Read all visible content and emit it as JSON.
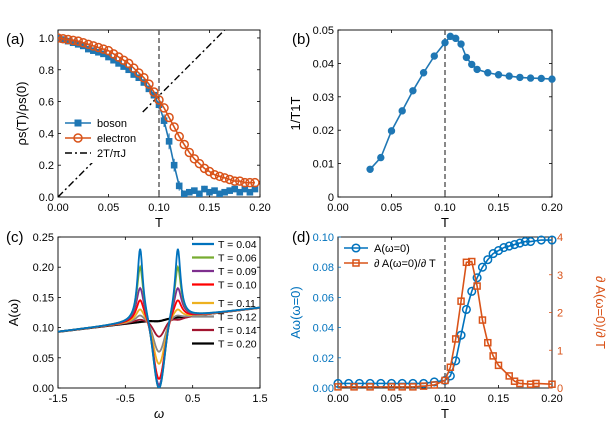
{
  "panels": {
    "a": "(a)",
    "b": "(b)",
    "c": "(c)",
    "d": "(d)"
  },
  "colors": {
    "blue": "#1f77b4",
    "orange": "#d95319",
    "black": "#000000",
    "dashed": "#555555"
  },
  "chart_data": [
    {
      "id": "a",
      "type": "line",
      "xlabel": "T",
      "ylabel": "ρs(T)/ρs(0)",
      "xlim": [
        0,
        0.2
      ],
      "ylim": [
        0,
        1.05
      ],
      "xticks": [
        "0.00",
        "0.05",
        "0.10",
        "0.15",
        "0.20"
      ],
      "yticks": [
        "0.0",
        "0.2",
        "0.4",
        "0.6",
        "0.8",
        "1.0"
      ],
      "legend_position": "lower-left",
      "vline": 0.1,
      "series": [
        {
          "name": "boson",
          "color": "#1f77b4",
          "marker": "square",
          "x": [
            0.0,
            0.005,
            0.01,
            0.015,
            0.02,
            0.025,
            0.03,
            0.035,
            0.04,
            0.045,
            0.05,
            0.055,
            0.06,
            0.065,
            0.07,
            0.075,
            0.08,
            0.085,
            0.09,
            0.095,
            0.1,
            0.105,
            0.11,
            0.115,
            0.12,
            0.125,
            0.13,
            0.135,
            0.14,
            0.145,
            0.15,
            0.155,
            0.16,
            0.165,
            0.17,
            0.175,
            0.18,
            0.185,
            0.19,
            0.195
          ],
          "y": [
            1.0,
            0.99,
            0.98,
            0.97,
            0.96,
            0.95,
            0.93,
            0.92,
            0.91,
            0.9,
            0.88,
            0.86,
            0.84,
            0.82,
            0.8,
            0.77,
            0.75,
            0.72,
            0.68,
            0.64,
            0.58,
            0.48,
            0.35,
            0.2,
            0.07,
            0.02,
            0.03,
            0.04,
            0.02,
            0.05,
            0.03,
            0.04,
            0.02,
            0.03,
            0.04,
            0.05,
            0.03,
            0.05,
            0.03,
            0.05
          ],
          "errors": [
            0.01,
            0.01,
            0.01,
            0.01,
            0.01,
            0.01,
            0.01,
            0.01,
            0.01,
            0.01,
            0.01,
            0.01,
            0.01,
            0.01,
            0.01,
            0.01,
            0.01,
            0.01,
            0.015,
            0.015,
            0.03,
            0.04,
            0.05,
            0.04,
            0.03,
            0.02,
            0.02,
            0.02,
            0.02,
            0.02,
            0.02,
            0.02,
            0.02,
            0.02,
            0.02,
            0.02,
            0.02,
            0.02,
            0.02,
            0.02
          ]
        },
        {
          "name": "electron",
          "color": "#d95319",
          "marker": "circle",
          "x": [
            0.0,
            0.005,
            0.01,
            0.015,
            0.02,
            0.025,
            0.03,
            0.035,
            0.04,
            0.045,
            0.05,
            0.055,
            0.06,
            0.065,
            0.07,
            0.075,
            0.08,
            0.085,
            0.09,
            0.095,
            0.1,
            0.105,
            0.11,
            0.115,
            0.12,
            0.125,
            0.13,
            0.135,
            0.14,
            0.145,
            0.15,
            0.155,
            0.16,
            0.165,
            0.17,
            0.175,
            0.18,
            0.185,
            0.19,
            0.195
          ],
          "y": [
            1.0,
            0.995,
            0.99,
            0.985,
            0.98,
            0.97,
            0.96,
            0.95,
            0.94,
            0.93,
            0.92,
            0.9,
            0.88,
            0.86,
            0.84,
            0.81,
            0.78,
            0.75,
            0.71,
            0.66,
            0.61,
            0.56,
            0.5,
            0.44,
            0.38,
            0.33,
            0.28,
            0.24,
            0.21,
            0.18,
            0.16,
            0.14,
            0.13,
            0.12,
            0.11,
            0.1,
            0.1,
            0.09,
            0.09,
            0.09
          ]
        },
        {
          "name": "2T/πJ",
          "color": "#000000",
          "style": "dash-dot",
          "x": [
            0.0,
            0.2
          ],
          "y": [
            0.0,
            1.2732
          ]
        }
      ]
    },
    {
      "id": "b",
      "type": "line",
      "xlabel": "T",
      "ylabel": "1/T1T",
      "xlim": [
        0,
        0.2
      ],
      "ylim": [
        0,
        0.05
      ],
      "xticks": [
        "0.00",
        "0.05",
        "0.10",
        "0.15",
        "0.20"
      ],
      "yticks": [
        "0",
        "0.01",
        "0.02",
        "0.03",
        "0.04",
        "0.05"
      ],
      "vline": 0.1,
      "series": [
        {
          "color": "#1f77b4",
          "marker": "circle",
          "x": [
            0.03,
            0.04,
            0.05,
            0.06,
            0.07,
            0.08,
            0.09,
            0.1,
            0.105,
            0.11,
            0.115,
            0.12,
            0.125,
            0.13,
            0.14,
            0.15,
            0.16,
            0.17,
            0.18,
            0.19,
            0.2
          ],
          "y": [
            0.0083,
            0.0118,
            0.0198,
            0.0258,
            0.0318,
            0.0372,
            0.0422,
            0.0462,
            0.0481,
            0.0475,
            0.0458,
            0.0418,
            0.0397,
            0.0382,
            0.0372,
            0.0366,
            0.0362,
            0.0358,
            0.0356,
            0.0355,
            0.0353
          ]
        }
      ]
    },
    {
      "id": "c",
      "type": "line",
      "xlabel": "ω",
      "ylabel": "A(ω)",
      "xlim": [
        -1.5,
        1.5
      ],
      "ylim": [
        0,
        0.25
      ],
      "xticks": [
        "-1.5",
        "-0.5",
        "0.5",
        "1.5"
      ],
      "yticks": [
        "0.00",
        "0.05",
        "0.10",
        "0.15",
        "0.20",
        "0.25"
      ],
      "legend_position": "top-right",
      "series": [
        {
          "name": "T = 0.04",
          "color": "#0072bd",
          "T": 0.04,
          "peak": 0.23,
          "gap": 0.0
        },
        {
          "name": "T = 0.06",
          "color": "#77ac30",
          "T": 0.06,
          "peak": 0.2,
          "gap": 0.0
        },
        {
          "name": "T = 0.09",
          "color": "#7e2f8e",
          "T": 0.09,
          "peak": 0.165,
          "gap": 0.005
        },
        {
          "name": "T = 0.10",
          "color": "#ff0000",
          "T": 0.1,
          "peak": 0.145,
          "gap": 0.015
        },
        {
          "name": "T = 0.11",
          "color": "#edb120",
          "T": 0.11,
          "peak": 0.13,
          "gap": 0.04
        },
        {
          "name": "T = 0.12",
          "color": "#888888",
          "T": 0.12,
          "peak": 0.12,
          "gap": 0.06
        },
        {
          "name": "T = 0.14",
          "color": "#a2142f",
          "T": 0.14,
          "peak": 0.113,
          "gap": 0.085
        },
        {
          "name": "T = 0.20",
          "color": "#000000",
          "T": 0.2,
          "peak": 0.11,
          "gap": 0.11
        }
      ]
    },
    {
      "id": "d",
      "type": "line",
      "xlabel": "T",
      "ylabel": "Aω(ω=0)",
      "ylabel_right": "∂ A(ω=0)/∂ T",
      "xlim": [
        0,
        0.2
      ],
      "ylim": [
        0,
        0.1
      ],
      "ylim_right": [
        0,
        4
      ],
      "xticks": [
        "0.00",
        "0.05",
        "0.10",
        "0.15",
        "0.20"
      ],
      "yticks": [
        "0.00",
        "0.02",
        "0.04",
        "0.06",
        "0.08",
        "0.10"
      ],
      "yticks_right": [
        "0",
        "1",
        "2",
        "3",
        "4"
      ],
      "legend_position": "top-left",
      "vline": 0.1,
      "series": [
        {
          "name": "A(ω=0)",
          "color": "#0072bd",
          "marker": "circle",
          "axis": "left",
          "x": [
            0.0,
            0.01,
            0.02,
            0.03,
            0.04,
            0.05,
            0.06,
            0.07,
            0.08,
            0.09,
            0.1,
            0.105,
            0.11,
            0.115,
            0.12,
            0.125,
            0.13,
            0.135,
            0.14,
            0.145,
            0.15,
            0.155,
            0.16,
            0.165,
            0.17,
            0.175,
            0.18,
            0.19,
            0.2
          ],
          "y": [
            0.003,
            0.003,
            0.003,
            0.003,
            0.003,
            0.003,
            0.003,
            0.003,
            0.003,
            0.004,
            0.005,
            0.008,
            0.018,
            0.035,
            0.052,
            0.064,
            0.073,
            0.08,
            0.085,
            0.089,
            0.091,
            0.093,
            0.094,
            0.095,
            0.096,
            0.097,
            0.097,
            0.098,
            0.098
          ]
        },
        {
          "name": "∂ A(ω=0)/∂ T",
          "color": "#d95319",
          "marker": "square",
          "axis": "right",
          "x": [
            0.0,
            0.015,
            0.03,
            0.05,
            0.06,
            0.07,
            0.08,
            0.09,
            0.1,
            0.105,
            0.11,
            0.115,
            0.12,
            0.125,
            0.13,
            0.135,
            0.14,
            0.145,
            0.15,
            0.16,
            0.165,
            0.17,
            0.18,
            0.185,
            0.2
          ],
          "y": [
            0.03,
            0.03,
            0.03,
            0.03,
            0.03,
            0.03,
            0.05,
            0.08,
            0.2,
            0.55,
            1.3,
            2.3,
            3.33,
            3.35,
            2.7,
            1.8,
            1.2,
            0.85,
            0.6,
            0.32,
            0.18,
            0.12,
            0.1,
            0.12,
            0.1
          ]
        }
      ]
    }
  ]
}
